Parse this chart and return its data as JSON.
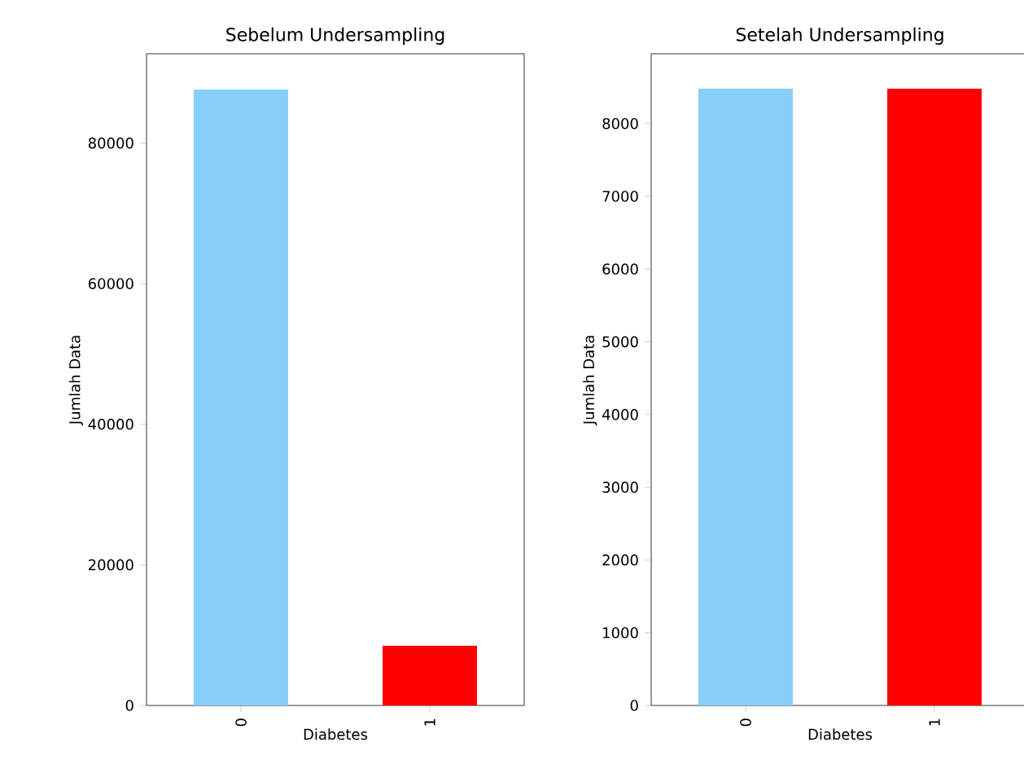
{
  "chart_data": [
    {
      "type": "bar",
      "title": "Sebelum Undersampling",
      "xlabel": "Diabetes",
      "ylabel": "Jumlah Data",
      "categories": [
        "0",
        "1"
      ],
      "values": [
        87600,
        8500
      ],
      "colors": [
        "#87cefa",
        "#ff0000"
      ],
      "ylim": [
        0,
        92700
      ],
      "yticks": [
        0,
        20000,
        40000,
        60000,
        80000
      ]
    },
    {
      "type": "bar",
      "title": "Setelah Undersampling",
      "xlabel": "Diabetes",
      "ylabel": "Jumlah Data",
      "categories": [
        "0",
        "1"
      ],
      "values": [
        8480,
        8480
      ],
      "colors": [
        "#87cefa",
        "#ff0000"
      ],
      "ylim": [
        0,
        8960
      ],
      "yticks": [
        0,
        1000,
        2000,
        3000,
        4000,
        5000,
        6000,
        7000,
        8000
      ]
    }
  ]
}
